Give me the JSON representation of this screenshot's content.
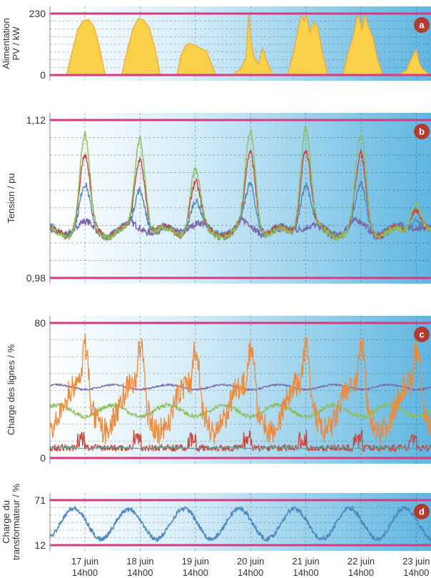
{
  "colors": {
    "limit_line": "#d63a7f",
    "panel_bg_left": "#ffffff",
    "panel_bg_right": "#5fb6e0",
    "pv_fill": "#f9d24a",
    "pv_edge": "#f0a43a",
    "green": "#8cbf5a",
    "red": "#c8463c",
    "blue": "#4e89bd",
    "purple": "#7a63a8",
    "orange": "#ef8a3a",
    "teal": "#3fb0b0",
    "badge": "#b23a2e"
  },
  "x_axis": {
    "ticks": [
      {
        "day": "17 juin",
        "time": "14h00",
        "x": 17.583
      },
      {
        "day": "18 juin",
        "time": "14h00",
        "x": 18.583
      },
      {
        "day": "19 juin",
        "time": "14h00",
        "x": 19.583
      },
      {
        "day": "20 juin",
        "time": "14h00",
        "x": 20.583
      },
      {
        "day": "21 juin",
        "time": "14h00",
        "x": 21.583
      },
      {
        "day": "22 juin",
        "time": "14h00",
        "x": 22.583
      },
      {
        "day": "23 juin",
        "time": "14h00",
        "x": 23.583
      }
    ],
    "xlim": [
      16.95,
      23.85
    ]
  },
  "chart_data": [
    {
      "type": "area",
      "badge": "a",
      "ylabel": [
        "Alimentation",
        "PV / kW"
      ],
      "yticks": [
        "230",
        "0"
      ],
      "ylim": [
        0,
        230
      ],
      "limits": [
        0,
        230
      ],
      "series": [
        {
          "color_key": "pv_fill",
          "x": [
            17.25,
            17.35,
            17.45,
            17.55,
            17.65,
            17.75,
            17.85,
            17.95,
            18.25,
            18.35,
            18.45,
            18.55,
            18.65,
            18.75,
            18.85,
            18.95,
            19.25,
            19.32,
            19.4,
            19.47,
            19.55,
            19.62,
            19.7,
            19.78,
            19.85,
            19.95,
            20.25,
            20.4,
            20.5,
            20.55,
            20.6,
            20.66,
            20.72,
            20.8,
            20.86,
            20.92,
            20.98,
            21.25,
            21.35,
            21.45,
            21.5,
            21.55,
            21.6,
            21.65,
            21.72,
            21.8,
            21.88,
            21.98,
            22.25,
            22.35,
            22.45,
            22.5,
            22.55,
            22.6,
            22.65,
            22.72,
            22.8,
            22.88,
            22.98,
            23.25,
            23.4,
            23.5,
            23.58,
            23.65,
            23.72,
            23.82
          ],
          "values": [
            0,
            90,
            165,
            205,
            210,
            180,
            100,
            0,
            0,
            95,
            170,
            210,
            205,
            175,
            100,
            0,
            0,
            70,
            110,
            120,
            112,
            105,
            100,
            90,
            55,
            0,
            0,
            20,
            60,
            230,
            110,
            55,
            40,
            100,
            60,
            30,
            0,
            0,
            70,
            180,
            225,
            200,
            230,
            160,
            200,
            180,
            90,
            0,
            0,
            80,
            150,
            210,
            220,
            170,
            230,
            180,
            140,
            60,
            0,
            0,
            20,
            60,
            100,
            40,
            20,
            0
          ]
        }
      ]
    },
    {
      "type": "line",
      "badge": "b",
      "ylabel": [
        "Tension / pu"
      ],
      "yticks": [
        "1,12",
        "0,98"
      ],
      "ylim": [
        0.98,
        1.12
      ],
      "limits": [
        0.98,
        1.12
      ],
      "series": [
        {
          "color_key": "purple",
          "peak": 0,
          "base": 1.023
        },
        {
          "color_key": "blue",
          "peak": 0.45,
          "base": 1.022
        },
        {
          "color_key": "red",
          "peak": 0.78,
          "base": 1.021
        },
        {
          "color_key": "green",
          "peak": 1.0,
          "base": 1.02
        }
      ],
      "peaks": [
        {
          "day": 17.58,
          "h": 0.083
        },
        {
          "day": 18.58,
          "h": 0.085
        },
        {
          "day": 19.58,
          "h": 0.055
        },
        {
          "day": 20.58,
          "h": 0.09
        },
        {
          "day": 21.58,
          "h": 0.095
        },
        {
          "day": 22.58,
          "h": 0.085
        },
        {
          "day": 23.58,
          "h": 0.03
        }
      ]
    },
    {
      "type": "line",
      "badge": "c",
      "ylabel": [
        "Charge des lignes / %"
      ],
      "yticks": [
        "80",
        "0"
      ],
      "ylim": [
        0,
        80
      ],
      "limits": [
        0,
        80
      ],
      "series": [
        {
          "color_key": "purple",
          "base": 42,
          "amp": 4
        },
        {
          "color_key": "green",
          "base": 28,
          "amp": 10
        },
        {
          "color_key": "orange",
          "base": 35,
          "amp": 35
        },
        {
          "color_key": "red",
          "base": 5,
          "amp": 4
        },
        {
          "color_key": "teal",
          "base": 6,
          "amp": 1
        }
      ]
    },
    {
      "type": "line",
      "badge": "d",
      "ylabel": [
        "Charge du",
        "transformateur / %"
      ],
      "yticks": [
        "71",
        "12"
      ],
      "ylim": [
        12,
        71
      ],
      "limits": [
        12,
        71
      ],
      "series": [
        {
          "color_key": "blue",
          "base": 40,
          "amp": 22
        }
      ]
    }
  ]
}
